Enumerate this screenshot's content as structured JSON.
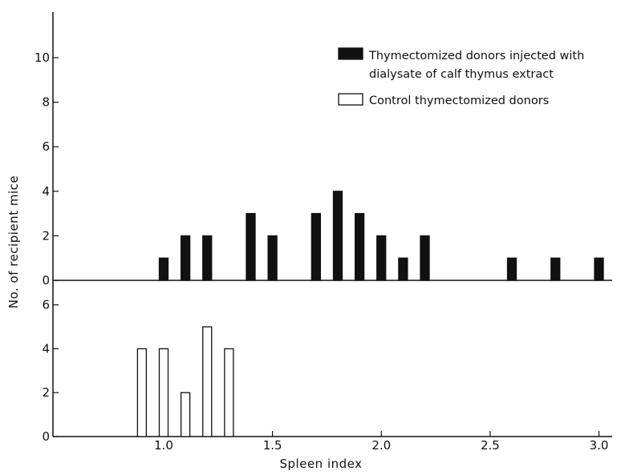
{
  "chart_data": {
    "type": "bar",
    "xlabel": "Spleen index",
    "ylabel": "No. of recipient mice",
    "x_ticks": [
      "1.0",
      "1.5",
      "2.0",
      "2.5",
      "3.0"
    ],
    "x_tick_values": [
      1.0,
      1.5,
      2.0,
      2.5,
      3.0
    ],
    "xlim": [
      0.5,
      3.08
    ],
    "grid": false,
    "legend_position": "top-right",
    "panels": [
      {
        "name": "top",
        "ylim": [
          0,
          11.5
        ],
        "y_ticks": [
          "0",
          "2",
          "4",
          "6",
          "8",
          "10"
        ],
        "y_tick_values": [
          0,
          2,
          4,
          6,
          8,
          10
        ],
        "series": [
          {
            "name": "Thymectomized donors injected with dialysate of calf thymus extract",
            "fill": "#111111",
            "x": [
              1.0,
              1.1,
              1.2,
              1.4,
              1.5,
              1.7,
              1.8,
              1.9,
              2.0,
              2.1,
              2.2,
              2.6,
              2.8,
              3.0
            ],
            "values": [
              1,
              2,
              2,
              3,
              2,
              3,
              4,
              3,
              2,
              1,
              2,
              1,
              1,
              1
            ]
          }
        ]
      },
      {
        "name": "bottom",
        "ylim": [
          0,
          6.5
        ],
        "y_ticks": [
          "0",
          "2",
          "4",
          "6"
        ],
        "y_tick_values": [
          0,
          2,
          4,
          6
        ],
        "series": [
          {
            "name": "Control thymectomized donors",
            "fill": "#ffffff",
            "x": [
              0.9,
              1.0,
              1.1,
              1.2,
              1.3
            ],
            "values": [
              4,
              4,
              2,
              5,
              4
            ]
          }
        ]
      }
    ],
    "legend": [
      {
        "label_lines": [
          "Thymectomized donors injected with",
          "dialysate of calf thymus extract"
        ],
        "fill": "#111111"
      },
      {
        "label_lines": [
          "Control thymectomized donors"
        ],
        "fill": "#ffffff"
      }
    ]
  }
}
